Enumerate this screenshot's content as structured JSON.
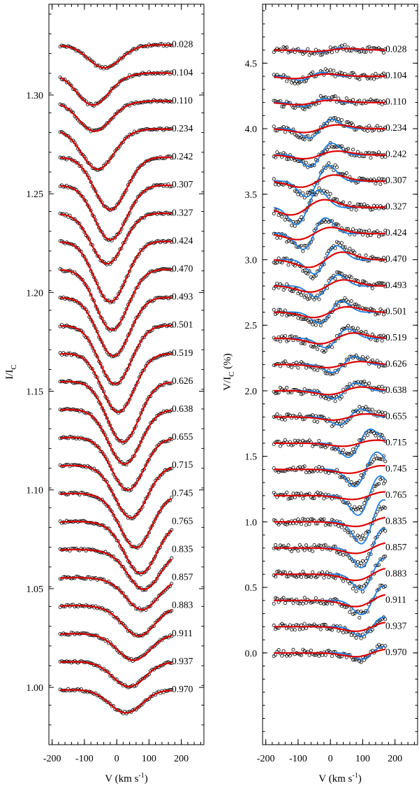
{
  "chart_data": [
    {
      "type": "line",
      "panel": "left",
      "title": "",
      "xlabel": "V (km s",
      "xlabel_sup": "-1",
      "xlabel_close": ")",
      "ylabel": "I/I",
      "ylabel_sub": "C",
      "xlim": [
        -210,
        270
      ],
      "ylim": [
        0.971,
        1.346
      ],
      "xticks": [
        -200,
        -100,
        0,
        100,
        200
      ],
      "xtick_labels": [
        "-200",
        "-100",
        "0",
        "100",
        "200"
      ],
      "yticks": [
        1.0,
        1.05,
        1.1,
        1.15,
        1.2,
        1.25,
        1.3
      ],
      "ytick_labels": [
        "1.00",
        "1.05",
        "1.10",
        "1.15",
        "1.20",
        "1.25",
        "1.30"
      ],
      "offset_step": 0.0142,
      "offset_base": 0.9972,
      "series_desc": "observed (open circles) and model (red) Stokes I profiles",
      "phases": [
        "0.028",
        "0.104",
        "0.110",
        "0.234",
        "0.242",
        "0.307",
        "0.327",
        "0.424",
        "0.470",
        "0.493",
        "0.501",
        "0.519",
        "0.626",
        "0.638",
        "0.655",
        "0.715",
        "0.745",
        "0.765",
        "0.835",
        "0.857",
        "0.883",
        "0.911",
        "0.937",
        "0.970"
      ],
      "line_center": [
        -40,
        -75,
        -70,
        -60,
        -20,
        -20,
        -30,
        -20,
        -15,
        -10,
        -5,
        5,
        20,
        25,
        35,
        45,
        60,
        75,
        85,
        80,
        70,
        55,
        40,
        30
      ],
      "line_depth": [
        0.011,
        0.016,
        0.015,
        0.02,
        0.026,
        0.027,
        0.025,
        0.03,
        0.03,
        0.029,
        0.029,
        0.029,
        0.03,
        0.027,
        0.026,
        0.026,
        0.027,
        0.026,
        0.02,
        0.016,
        0.015,
        0.013,
        0.012,
        0.011
      ],
      "red_color": "#dd0000",
      "marker_color": "#000000"
    },
    {
      "type": "line",
      "panel": "right",
      "title": "",
      "xlabel": "V (km s",
      "xlabel_sup": "-1",
      "xlabel_close": ")",
      "ylabel": "V/I",
      "ylabel_sub": "C",
      "ylabel_suffix": " (%)",
      "xlim": [
        -210,
        270
      ],
      "ylim": [
        -0.7,
        4.95
      ],
      "xticks": [
        -200,
        -100,
        0,
        100,
        200
      ],
      "xtick_labels": [
        "-200",
        "-100",
        "0",
        "100",
        "200"
      ],
      "yticks": [
        0.0,
        0.5,
        1.0,
        1.5,
        2.0,
        2.5,
        3.0,
        3.5,
        4.0,
        4.5
      ],
      "ytick_labels": [
        "0.0",
        "0.5",
        "1.0",
        "1.5",
        "2.0",
        "2.5",
        "3.0",
        "3.5",
        "4.0",
        "4.5"
      ],
      "offset_step": 0.2,
      "offset_base": 0.0,
      "series_desc": "observed (open circles), model (red) and alternative model (blue) Stokes V profiles",
      "phases": [
        "0.028",
        "0.104",
        "0.110",
        "0.234",
        "0.242",
        "0.307",
        "0.327",
        "0.424",
        "0.470",
        "0.493",
        "0.501",
        "0.519",
        "0.626",
        "0.638",
        "0.655",
        "0.715",
        "0.745",
        "0.765",
        "0.835",
        "0.857",
        "0.883",
        "0.911",
        "0.937",
        "0.970"
      ],
      "v_amp_red": [
        0.02,
        0.03,
        0.03,
        0.05,
        0.05,
        0.08,
        0.1,
        0.08,
        0.1,
        0.08,
        0.07,
        0.07,
        0.04,
        0.05,
        0.04,
        0.04,
        0.05,
        0.05,
        0.06,
        0.07,
        0.08,
        0.08,
        0.06,
        0.05
      ],
      "v_amp_blue": [
        0.03,
        0.05,
        0.05,
        0.12,
        0.15,
        0.2,
        0.22,
        0.2,
        0.18,
        0.14,
        0.14,
        0.12,
        0.1,
        0.1,
        0.1,
        0.18,
        0.22,
        0.25,
        0.28,
        0.25,
        0.2,
        0.18,
        0.12,
        0.08
      ],
      "v_center": [
        0,
        -60,
        -50,
        -30,
        -30,
        -40,
        -70,
        -50,
        -15,
        -10,
        0,
        20,
        40,
        45,
        60,
        90,
        110,
        120,
        130,
        130,
        130,
        130,
        130,
        130
      ],
      "red_color": "#dd0000",
      "blue_color": "#1f7fe0",
      "marker_color": "#000000"
    }
  ]
}
